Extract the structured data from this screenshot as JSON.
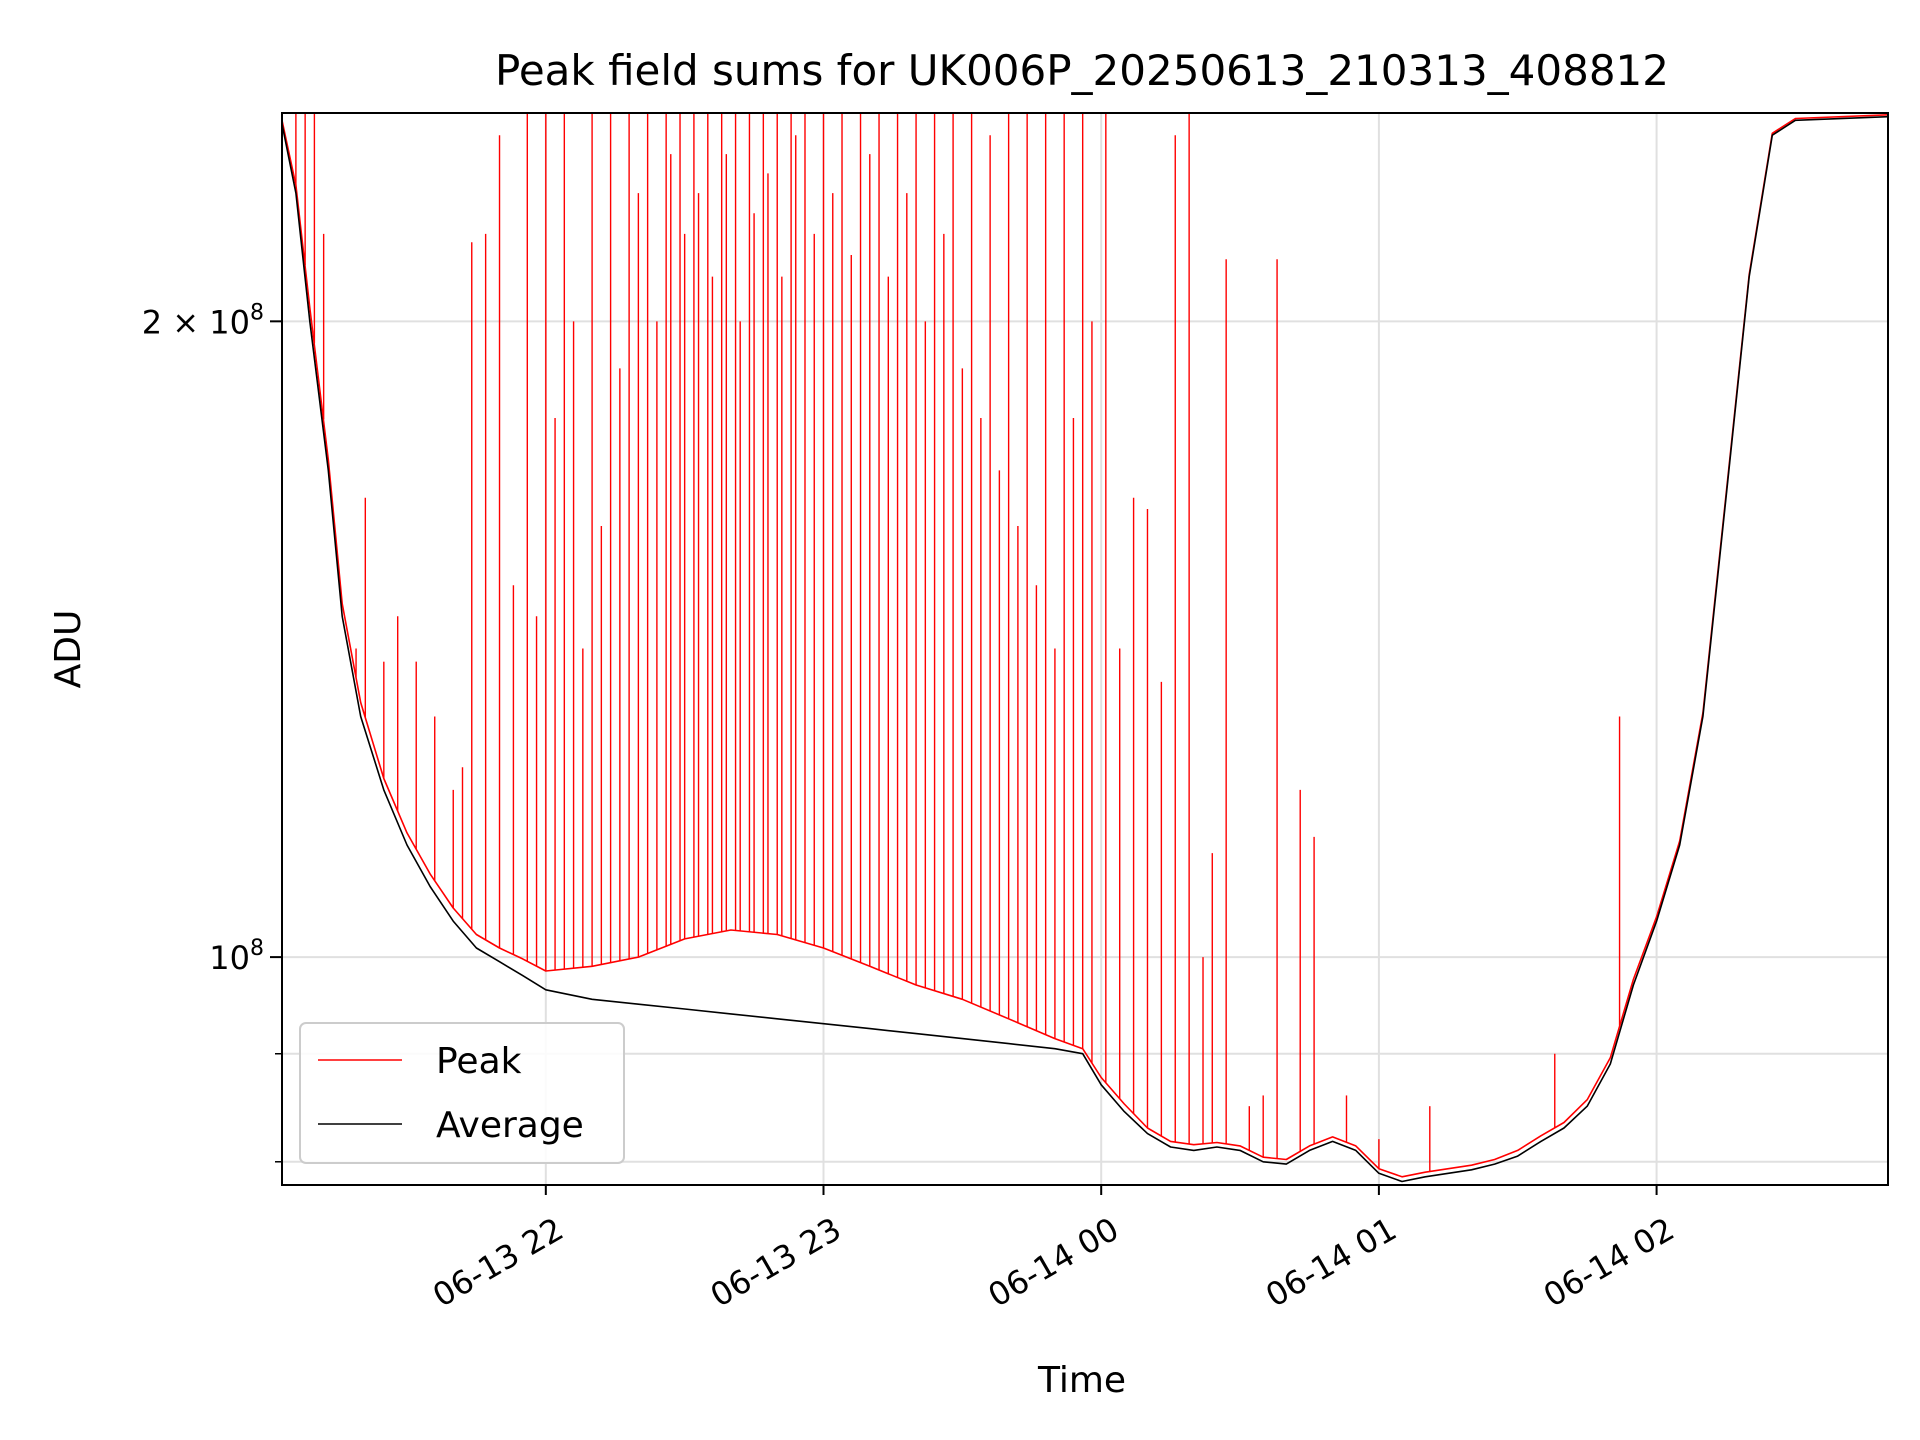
{
  "chart_data": {
    "type": "line",
    "title": "Peak field sums for UK006P_20250613_210313_408812",
    "xlabel": "Time",
    "ylabel": "ADU",
    "yscale": "log",
    "xlim": [
      "2025-06-13 21:03",
      "2025-06-14 02:50"
    ],
    "ylim": [
      78000000,
      251000000
    ],
    "grid": true,
    "legend_position": "lower-left",
    "x_ticks": [
      {
        "value": "2025-06-13 22:00",
        "label": "06-13 22"
      },
      {
        "value": "2025-06-13 23:00",
        "label": "06-13 23"
      },
      {
        "value": "2025-06-14 00:00",
        "label": "06-14 00"
      },
      {
        "value": "2025-06-14 01:00",
        "label": "06-14 01"
      },
      {
        "value": "2025-06-14 02:00",
        "label": "06-14 02"
      }
    ],
    "y_ticks": [
      {
        "value": 200000000,
        "label_base": "2 × 10",
        "label_exp": "8"
      },
      {
        "value": 100000000,
        "label_base": "10",
        "label_exp": "8"
      }
    ],
    "y_minor_ticks": [
      90000000,
      80000000
    ],
    "series": [
      {
        "name": "Average",
        "color": "#000000",
        "points": [
          [
            "2025-06-13 21:03",
            248000000
          ],
          [
            "2025-06-13 21:06",
            230000000
          ],
          [
            "2025-06-13 21:09",
            200000000
          ],
          [
            "2025-06-13 21:13",
            170000000
          ],
          [
            "2025-06-13 21:16",
            145000000
          ],
          [
            "2025-06-13 21:20",
            130000000
          ],
          [
            "2025-06-13 21:25",
            120000000
          ],
          [
            "2025-06-13 21:30",
            113000000
          ],
          [
            "2025-06-13 21:35",
            108000000
          ],
          [
            "2025-06-13 21:40",
            104000000
          ],
          [
            "2025-06-13 21:45",
            101000000
          ],
          [
            "2025-06-13 21:50",
            99500000
          ],
          [
            "2025-06-13 21:55",
            98000000
          ],
          [
            "2025-06-13 22:00",
            96500000
          ],
          [
            "2025-06-13 22:10",
            95500000
          ],
          [
            "2025-06-13 22:20",
            95000000
          ],
          [
            "2025-06-13 22:30",
            94500000
          ],
          [
            "2025-06-13 22:40",
            94000000
          ],
          [
            "2025-06-13 22:50",
            93500000
          ],
          [
            "2025-06-13 23:00",
            93000000
          ],
          [
            "2025-06-13 23:10",
            92500000
          ],
          [
            "2025-06-13 23:20",
            92000000
          ],
          [
            "2025-06-13 23:30",
            91500000
          ],
          [
            "2025-06-13 23:40",
            91000000
          ],
          [
            "2025-06-13 23:50",
            90500000
          ],
          [
            "2025-06-13 23:56",
            90000000
          ],
          [
            "2025-06-14 00:00",
            87000000
          ],
          [
            "2025-06-14 00:05",
            84500000
          ],
          [
            "2025-06-14 00:10",
            82500000
          ],
          [
            "2025-06-14 00:15",
            81300000
          ],
          [
            "2025-06-14 00:20",
            81000000
          ],
          [
            "2025-06-14 00:25",
            81300000
          ],
          [
            "2025-06-14 00:30",
            81000000
          ],
          [
            "2025-06-14 00:35",
            80000000
          ],
          [
            "2025-06-14 00:40",
            79800000
          ],
          [
            "2025-06-14 00:45",
            81000000
          ],
          [
            "2025-06-14 00:50",
            81800000
          ],
          [
            "2025-06-14 00:55",
            81000000
          ],
          [
            "2025-06-14 01:00",
            79000000
          ],
          [
            "2025-06-14 01:05",
            78300000
          ],
          [
            "2025-06-14 01:10",
            78700000
          ],
          [
            "2025-06-14 01:15",
            79000000
          ],
          [
            "2025-06-14 01:20",
            79300000
          ],
          [
            "2025-06-14 01:25",
            79800000
          ],
          [
            "2025-06-14 01:30",
            80500000
          ],
          [
            "2025-06-14 01:35",
            81800000
          ],
          [
            "2025-06-14 01:40",
            83000000
          ],
          [
            "2025-06-14 01:45",
            85000000
          ],
          [
            "2025-06-14 01:50",
            89000000
          ],
          [
            "2025-06-14 01:55",
            97000000
          ],
          [
            "2025-06-14 02:00",
            104000000
          ],
          [
            "2025-06-14 02:05",
            113000000
          ],
          [
            "2025-06-14 02:10",
            130000000
          ],
          [
            "2025-06-14 02:15",
            165000000
          ],
          [
            "2025-06-14 02:20",
            210000000
          ],
          [
            "2025-06-14 02:25",
            245000000
          ],
          [
            "2025-06-14 02:30",
            249000000
          ],
          [
            "2025-06-14 02:50",
            250000000
          ]
        ]
      },
      {
        "name": "Peak",
        "color": "#ff0000",
        "points": [
          [
            "2025-06-13 21:03",
            249000000
          ],
          [
            "2025-06-13 21:06",
            232000000
          ],
          [
            "2025-06-13 21:09",
            203000000
          ],
          [
            "2025-06-13 21:13",
            172000000
          ],
          [
            "2025-06-13 21:16",
            147000000
          ],
          [
            "2025-06-13 21:20",
            132000000
          ],
          [
            "2025-06-13 21:25",
            121500000
          ],
          [
            "2025-06-13 21:30",
            114500000
          ],
          [
            "2025-06-13 21:35",
            109500000
          ],
          [
            "2025-06-13 21:40",
            105500000
          ],
          [
            "2025-06-13 21:45",
            102500000
          ],
          [
            "2025-06-13 21:50",
            101000000
          ],
          [
            "2025-06-13 21:55",
            99800000
          ],
          [
            "2025-06-13 22:00",
            98500000
          ],
          [
            "2025-06-13 22:10",
            99000000
          ],
          [
            "2025-06-13 22:20",
            100000000
          ],
          [
            "2025-06-13 22:30",
            102000000
          ],
          [
            "2025-06-13 22:40",
            103000000
          ],
          [
            "2025-06-13 22:50",
            102500000
          ],
          [
            "2025-06-13 23:00",
            101000000
          ],
          [
            "2025-06-13 23:10",
            99000000
          ],
          [
            "2025-06-13 23:20",
            97000000
          ],
          [
            "2025-06-13 23:30",
            95500000
          ],
          [
            "2025-06-13 23:40",
            93500000
          ],
          [
            "2025-06-13 23:50",
            91500000
          ],
          [
            "2025-06-13 23:56",
            90500000
          ],
          [
            "2025-06-14 00:00",
            87700000
          ],
          [
            "2025-06-14 00:05",
            85200000
          ],
          [
            "2025-06-14 00:10",
            83000000
          ],
          [
            "2025-06-14 00:15",
            81800000
          ],
          [
            "2025-06-14 00:20",
            81500000
          ],
          [
            "2025-06-14 00:25",
            81700000
          ],
          [
            "2025-06-14 00:30",
            81400000
          ],
          [
            "2025-06-14 00:35",
            80400000
          ],
          [
            "2025-06-14 00:40",
            80200000
          ],
          [
            "2025-06-14 00:45",
            81400000
          ],
          [
            "2025-06-14 00:50",
            82200000
          ],
          [
            "2025-06-14 00:55",
            81400000
          ],
          [
            "2025-06-14 01:00",
            79400000
          ],
          [
            "2025-06-14 01:05",
            78700000
          ],
          [
            "2025-06-14 01:10",
            79100000
          ],
          [
            "2025-06-14 01:15",
            79400000
          ],
          [
            "2025-06-14 01:20",
            79700000
          ],
          [
            "2025-06-14 01:25",
            80200000
          ],
          [
            "2025-06-14 01:30",
            81000000
          ],
          [
            "2025-06-14 01:35",
            82300000
          ],
          [
            "2025-06-14 01:40",
            83500000
          ],
          [
            "2025-06-14 01:45",
            85600000
          ],
          [
            "2025-06-14 01:50",
            89600000
          ],
          [
            "2025-06-14 01:55",
            97600000
          ],
          [
            "2025-06-14 02:00",
            104500000
          ],
          [
            "2025-06-14 02:05",
            113500000
          ],
          [
            "2025-06-14 02:10",
            130500000
          ],
          [
            "2025-06-14 02:15",
            165500000
          ],
          [
            "2025-06-14 02:20",
            210500000
          ],
          [
            "2025-06-14 02:25",
            245500000
          ],
          [
            "2025-06-14 02:30",
            249500000
          ],
          [
            "2025-06-14 02:50",
            250500000
          ]
        ],
        "spikes": [
          [
            "2025-06-13 21:06",
            251000000
          ],
          [
            "2025-06-13 21:08",
            251000000
          ],
          [
            "2025-06-13 21:10",
            251000000
          ],
          [
            "2025-06-13 21:12",
            220000000
          ],
          [
            "2025-06-13 21:19",
            140000000
          ],
          [
            "2025-06-13 21:21",
            165000000
          ],
          [
            "2025-06-13 21:25",
            138000000
          ],
          [
            "2025-06-13 21:28",
            145000000
          ],
          [
            "2025-06-13 21:32",
            138000000
          ],
          [
            "2025-06-13 21:36",
            130000000
          ],
          [
            "2025-06-13 21:40",
            120000000
          ],
          [
            "2025-06-13 21:42",
            123000000
          ],
          [
            "2025-06-13 21:44",
            218000000
          ],
          [
            "2025-06-13 21:47",
            220000000
          ],
          [
            "2025-06-13 21:50",
            245000000
          ],
          [
            "2025-06-13 21:53",
            150000000
          ],
          [
            "2025-06-13 21:56",
            251000000
          ],
          [
            "2025-06-13 21:58",
            145000000
          ],
          [
            "2025-06-13 22:00",
            251000000
          ],
          [
            "2025-06-13 22:02",
            180000000
          ],
          [
            "2025-06-13 22:04",
            251000000
          ],
          [
            "2025-06-13 22:06",
            200000000
          ],
          [
            "2025-06-13 22:08",
            140000000
          ],
          [
            "2025-06-13 22:10",
            251000000
          ],
          [
            "2025-06-13 22:12",
            160000000
          ],
          [
            "2025-06-13 22:14",
            251000000
          ],
          [
            "2025-06-13 22:16",
            190000000
          ],
          [
            "2025-06-13 22:18",
            251000000
          ],
          [
            "2025-06-13 22:20",
            230000000
          ],
          [
            "2025-06-13 22:22",
            251000000
          ],
          [
            "2025-06-13 22:24",
            200000000
          ],
          [
            "2025-06-13 22:26",
            251000000
          ],
          [
            "2025-06-13 22:27",
            240000000
          ],
          [
            "2025-06-13 22:29",
            251000000
          ],
          [
            "2025-06-13 22:30",
            220000000
          ],
          [
            "2025-06-13 22:32",
            251000000
          ],
          [
            "2025-06-13 22:33",
            230000000
          ],
          [
            "2025-06-13 22:35",
            251000000
          ],
          [
            "2025-06-13 22:36",
            210000000
          ],
          [
            "2025-06-13 22:38",
            251000000
          ],
          [
            "2025-06-13 22:39",
            240000000
          ],
          [
            "2025-06-13 22:41",
            251000000
          ],
          [
            "2025-06-13 22:42",
            200000000
          ],
          [
            "2025-06-13 22:44",
            251000000
          ],
          [
            "2025-06-13 22:45",
            225000000
          ],
          [
            "2025-06-13 22:47",
            251000000
          ],
          [
            "2025-06-13 22:48",
            235000000
          ],
          [
            "2025-06-13 22:50",
            251000000
          ],
          [
            "2025-06-13 22:51",
            210000000
          ],
          [
            "2025-06-13 22:53",
            251000000
          ],
          [
            "2025-06-13 22:54",
            245000000
          ],
          [
            "2025-06-13 22:56",
            251000000
          ],
          [
            "2025-06-13 22:58",
            220000000
          ],
          [
            "2025-06-13 23:00",
            251000000
          ],
          [
            "2025-06-13 23:02",
            230000000
          ],
          [
            "2025-06-13 23:04",
            251000000
          ],
          [
            "2025-06-13 23:06",
            215000000
          ],
          [
            "2025-06-13 23:08",
            251000000
          ],
          [
            "2025-06-13 23:10",
            240000000
          ],
          [
            "2025-06-13 23:12",
            251000000
          ],
          [
            "2025-06-13 23:14",
            210000000
          ],
          [
            "2025-06-13 23:16",
            251000000
          ],
          [
            "2025-06-13 23:18",
            230000000
          ],
          [
            "2025-06-13 23:20",
            251000000
          ],
          [
            "2025-06-13 23:22",
            200000000
          ],
          [
            "2025-06-13 23:24",
            251000000
          ],
          [
            "2025-06-13 23:26",
            220000000
          ],
          [
            "2025-06-13 23:28",
            251000000
          ],
          [
            "2025-06-13 23:30",
            190000000
          ],
          [
            "2025-06-13 23:32",
            251000000
          ],
          [
            "2025-06-13 23:34",
            180000000
          ],
          [
            "2025-06-13 23:36",
            245000000
          ],
          [
            "2025-06-13 23:38",
            170000000
          ],
          [
            "2025-06-13 23:40",
            251000000
          ],
          [
            "2025-06-13 23:42",
            160000000
          ],
          [
            "2025-06-13 23:44",
            251000000
          ],
          [
            "2025-06-13 23:46",
            150000000
          ],
          [
            "2025-06-13 23:48",
            251000000
          ],
          [
            "2025-06-13 23:50",
            140000000
          ],
          [
            "2025-06-13 23:52",
            251000000
          ],
          [
            "2025-06-13 23:54",
            180000000
          ],
          [
            "2025-06-13 23:56",
            251000000
          ],
          [
            "2025-06-13 23:58",
            200000000
          ],
          [
            "2025-06-14 00:01",
            251000000
          ],
          [
            "2025-06-14 00:04",
            140000000
          ],
          [
            "2025-06-14 00:07",
            165000000
          ],
          [
            "2025-06-14 00:10",
            163000000
          ],
          [
            "2025-06-14 00:13",
            135000000
          ],
          [
            "2025-06-14 00:16",
            245000000
          ],
          [
            "2025-06-14 00:19",
            251000000
          ],
          [
            "2025-06-14 00:22",
            100000000
          ],
          [
            "2025-06-14 00:24",
            112000000
          ],
          [
            "2025-06-14 00:27",
            214000000
          ],
          [
            "2025-06-14 00:32",
            85000000
          ],
          [
            "2025-06-14 00:35",
            86000000
          ],
          [
            "2025-06-14 00:38",
            214000000
          ],
          [
            "2025-06-14 00:43",
            120000000
          ],
          [
            "2025-06-14 00:46",
            114000000
          ],
          [
            "2025-06-14 00:53",
            86000000
          ],
          [
            "2025-06-14 01:00",
            82000000
          ],
          [
            "2025-06-14 01:11",
            85000000
          ],
          [
            "2025-06-14 01:38",
            90000000
          ],
          [
            "2025-06-14 01:52",
            130000000
          ]
        ]
      }
    ]
  }
}
